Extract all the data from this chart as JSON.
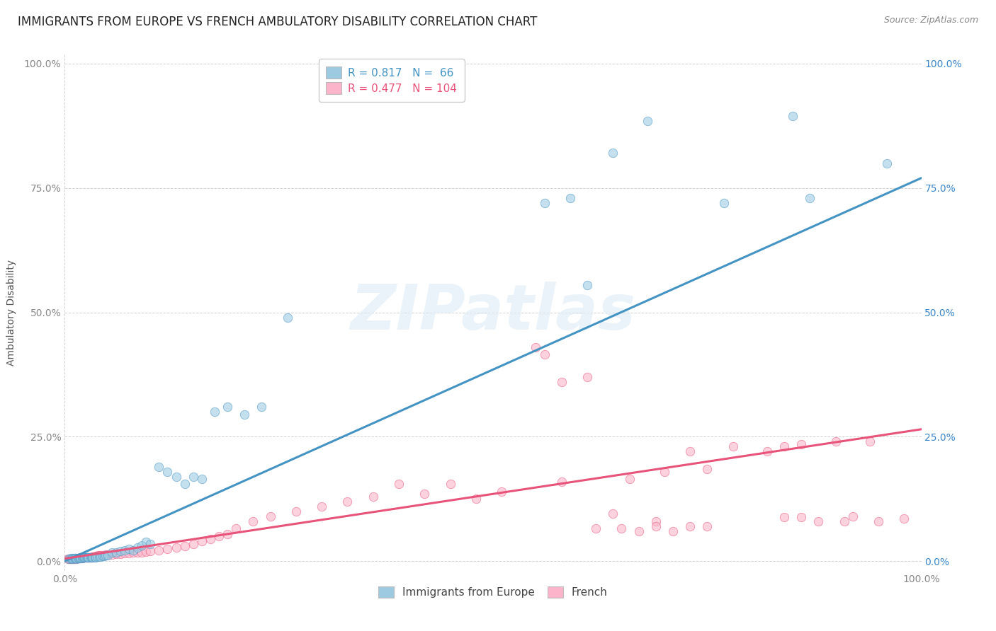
{
  "title": "IMMIGRANTS FROM EUROPE VS FRENCH AMBULATORY DISABILITY CORRELATION CHART",
  "source": "Source: ZipAtlas.com",
  "ylabel": "Ambulatory Disability",
  "ytick_values": [
    0.0,
    0.25,
    0.5,
    0.75,
    1.0
  ],
  "xlim": [
    0.0,
    1.0
  ],
  "ylim": [
    -0.02,
    1.02
  ],
  "blue_color": "#9ecae1",
  "blue_color_line": "#4393c3",
  "pink_color": "#fbb4c9",
  "pink_color_line": "#e8537a",
  "legend_blue_R": "0.817",
  "legend_blue_N": "66",
  "legend_pink_R": "0.477",
  "legend_pink_N": "104",
  "legend_label_blue": "Immigrants from Europe",
  "legend_label_pink": "French",
  "watermark_text": "ZIPatlas",
  "blue_scatter_x": [
    0.005,
    0.007,
    0.008,
    0.009,
    0.01,
    0.011,
    0.012,
    0.013,
    0.014,
    0.015,
    0.016,
    0.017,
    0.018,
    0.019,
    0.02,
    0.021,
    0.022,
    0.023,
    0.024,
    0.025,
    0.026,
    0.027,
    0.028,
    0.03,
    0.031,
    0.032,
    0.033,
    0.035,
    0.036,
    0.038,
    0.04,
    0.042,
    0.044,
    0.046,
    0.048,
    0.05,
    0.055,
    0.06,
    0.065,
    0.07,
    0.075,
    0.08,
    0.085,
    0.09,
    0.095,
    0.1,
    0.11,
    0.12,
    0.13,
    0.14,
    0.15,
    0.16,
    0.175,
    0.19,
    0.21,
    0.23,
    0.26,
    0.56,
    0.59,
    0.61,
    0.64,
    0.68,
    0.77,
    0.85,
    0.87,
    0.96
  ],
  "blue_scatter_y": [
    0.005,
    0.006,
    0.005,
    0.006,
    0.005,
    0.006,
    0.006,
    0.006,
    0.005,
    0.006,
    0.006,
    0.006,
    0.007,
    0.006,
    0.006,
    0.007,
    0.007,
    0.007,
    0.007,
    0.007,
    0.007,
    0.007,
    0.007,
    0.008,
    0.008,
    0.008,
    0.008,
    0.008,
    0.008,
    0.009,
    0.009,
    0.009,
    0.01,
    0.01,
    0.011,
    0.012,
    0.018,
    0.018,
    0.02,
    0.022,
    0.025,
    0.022,
    0.028,
    0.032,
    0.038,
    0.034,
    0.19,
    0.18,
    0.17,
    0.155,
    0.17,
    0.165,
    0.3,
    0.31,
    0.295,
    0.31,
    0.49,
    0.72,
    0.73,
    0.555,
    0.82,
    0.885,
    0.72,
    0.895,
    0.73,
    0.8
  ],
  "pink_scatter_x": [
    0.004,
    0.005,
    0.006,
    0.007,
    0.008,
    0.009,
    0.01,
    0.011,
    0.012,
    0.013,
    0.014,
    0.015,
    0.016,
    0.017,
    0.018,
    0.019,
    0.02,
    0.021,
    0.022,
    0.023,
    0.024,
    0.025,
    0.026,
    0.027,
    0.028,
    0.029,
    0.03,
    0.031,
    0.032,
    0.033,
    0.034,
    0.035,
    0.036,
    0.037,
    0.038,
    0.039,
    0.04,
    0.042,
    0.044,
    0.046,
    0.048,
    0.05,
    0.055,
    0.06,
    0.065,
    0.07,
    0.075,
    0.08,
    0.085,
    0.09,
    0.095,
    0.1,
    0.11,
    0.12,
    0.13,
    0.14,
    0.15,
    0.16,
    0.17,
    0.18,
    0.19,
    0.2,
    0.22,
    0.24,
    0.27,
    0.3,
    0.33,
    0.36,
    0.39,
    0.42,
    0.45,
    0.48,
    0.51,
    0.55,
    0.58,
    0.61,
    0.64,
    0.66,
    0.69,
    0.7,
    0.73,
    0.75,
    0.78,
    0.82,
    0.84,
    0.86,
    0.88,
    0.9,
    0.92,
    0.94,
    0.56,
    0.58,
    0.62,
    0.65,
    0.67,
    0.69,
    0.71,
    0.73,
    0.75,
    0.84,
    0.86,
    0.91,
    0.95,
    0.98
  ],
  "pink_scatter_y": [
    0.004,
    0.005,
    0.005,
    0.005,
    0.005,
    0.005,
    0.005,
    0.005,
    0.005,
    0.005,
    0.006,
    0.006,
    0.006,
    0.006,
    0.006,
    0.006,
    0.006,
    0.007,
    0.007,
    0.007,
    0.007,
    0.007,
    0.008,
    0.008,
    0.008,
    0.008,
    0.008,
    0.008,
    0.009,
    0.009,
    0.009,
    0.009,
    0.01,
    0.01,
    0.01,
    0.011,
    0.011,
    0.011,
    0.012,
    0.012,
    0.013,
    0.013,
    0.013,
    0.014,
    0.015,
    0.016,
    0.016,
    0.017,
    0.018,
    0.018,
    0.019,
    0.02,
    0.022,
    0.025,
    0.028,
    0.03,
    0.035,
    0.04,
    0.045,
    0.05,
    0.055,
    0.065,
    0.08,
    0.09,
    0.1,
    0.11,
    0.12,
    0.13,
    0.155,
    0.135,
    0.155,
    0.125,
    0.14,
    0.43,
    0.16,
    0.37,
    0.095,
    0.165,
    0.08,
    0.18,
    0.22,
    0.185,
    0.23,
    0.22,
    0.23,
    0.235,
    0.08,
    0.24,
    0.09,
    0.24,
    0.415,
    0.36,
    0.065,
    0.065,
    0.06,
    0.07,
    0.06,
    0.07,
    0.07,
    0.088,
    0.088,
    0.08,
    0.08,
    0.086
  ],
  "blue_line_x": [
    0.0,
    1.0
  ],
  "blue_line_y": [
    0.0,
    0.77
  ],
  "pink_line_x": [
    0.0,
    1.0
  ],
  "pink_line_y": [
    0.005,
    0.265
  ],
  "background_color": "#ffffff",
  "grid_color": "#cccccc",
  "title_fontsize": 12,
  "axis_label_fontsize": 10,
  "tick_fontsize": 10,
  "legend_fontsize": 11,
  "right_tick_color": "#3a86c8"
}
